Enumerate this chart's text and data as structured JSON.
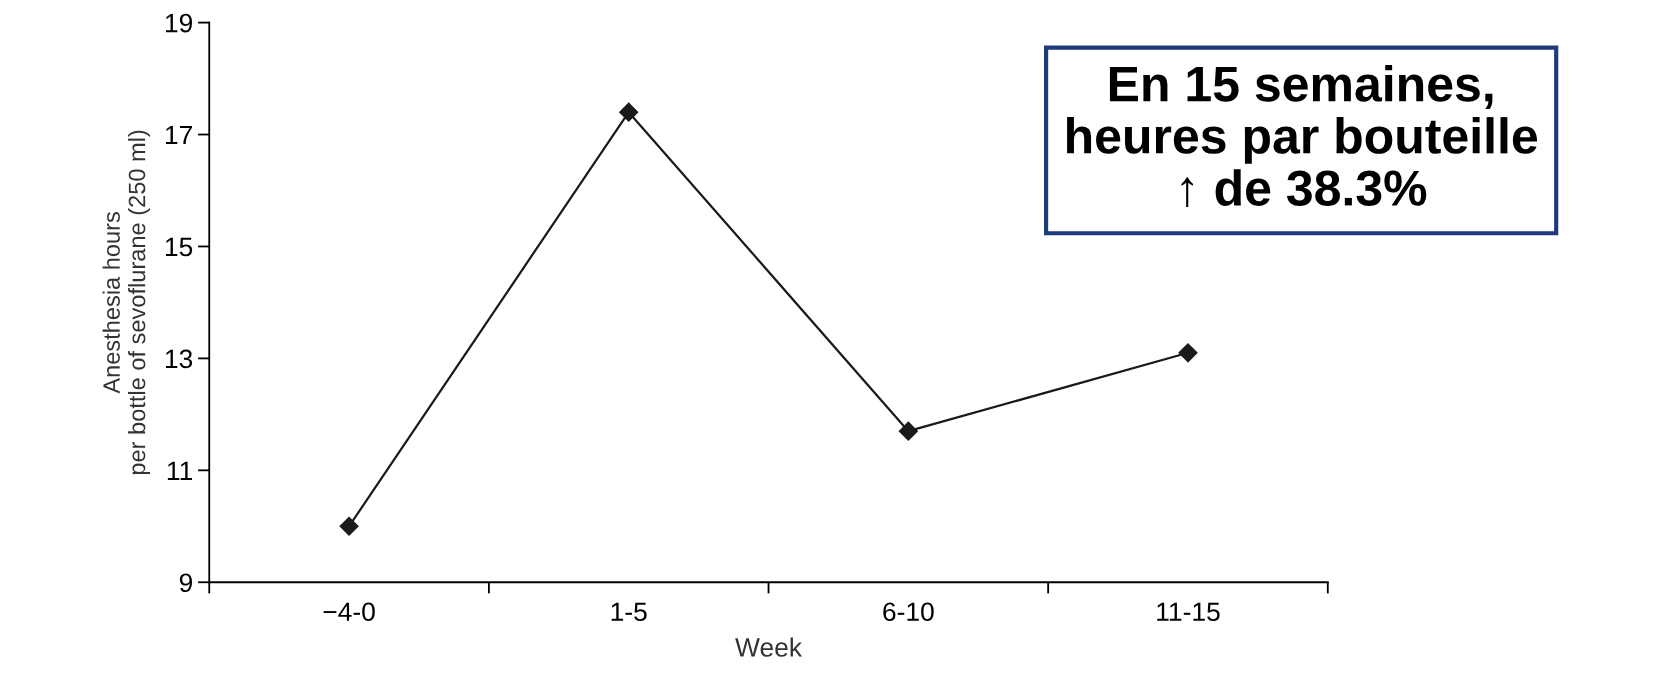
{
  "chart_data": {
    "type": "line",
    "xlabel": "Week",
    "ylabel": "Anesthesia hours\nper bottle of sevoflurane (250 ml)",
    "categories": [
      "−4-0",
      "1-5",
      "6-10",
      "11-15"
    ],
    "series": [
      {
        "color": "#1a1a1a",
        "values": [
          10.0,
          17.4,
          11.7,
          13.1
        ]
      }
    ],
    "ylim": [
      9,
      19
    ],
    "yticks": [
      9,
      11,
      13,
      15,
      17,
      19
    ],
    "marker": "diamond",
    "line_style": "solid",
    "grid": false,
    "annotations": [
      "En 15 semaines,\nheures par bouteille\n↑ de 38.3%"
    ]
  }
}
